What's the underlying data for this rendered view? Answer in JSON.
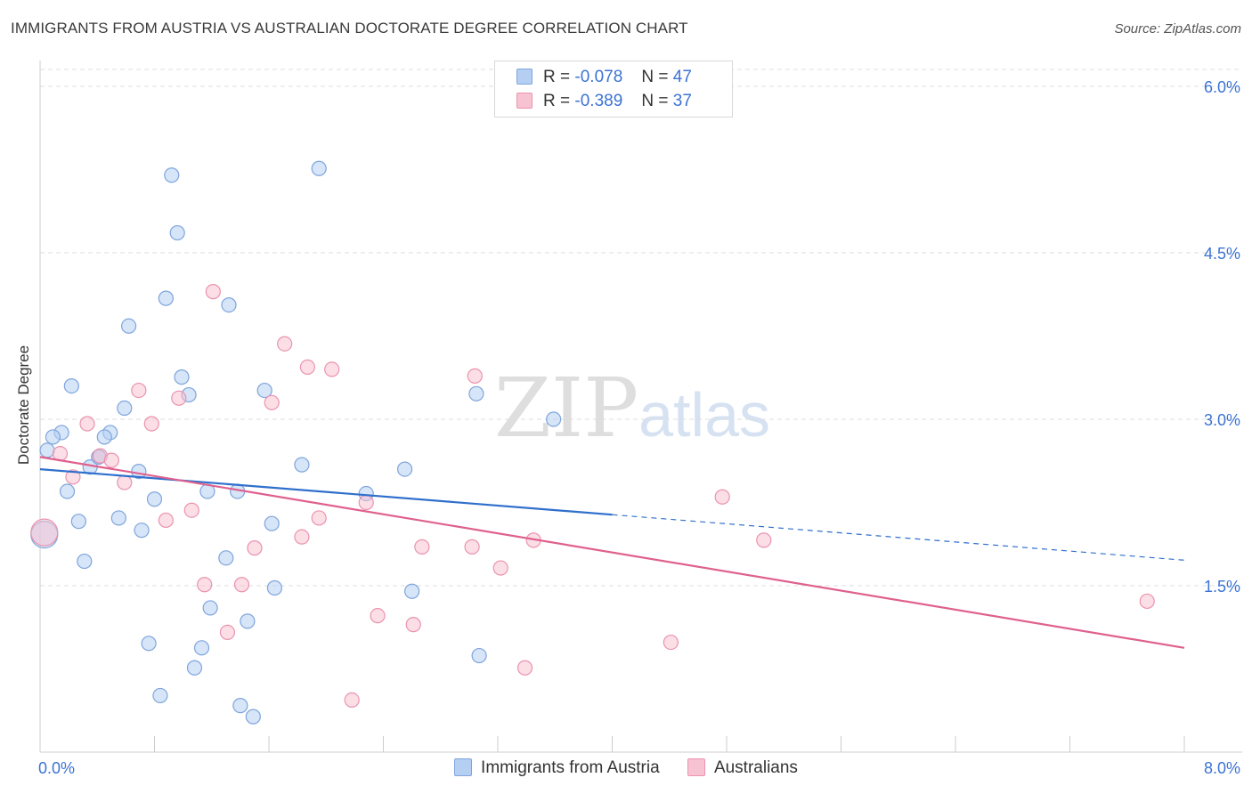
{
  "title": "IMMIGRANTS FROM AUSTRIA VS AUSTRALIAN DOCTORATE DEGREE CORRELATION CHART",
  "source": "Source: ZipAtlas.com",
  "watermark": {
    "part1": "ZIP",
    "part2": "atlas"
  },
  "colors": {
    "blue_fill": "#b5cff2",
    "blue_stroke": "#7fa5dc",
    "blue_line": "#2f6fcc",
    "pink_fill": "#f7c3d2",
    "pink_stroke": "#eb93ae",
    "pink_line": "#e0608e",
    "axis_label": "#3b73d4",
    "grid": "#dddddd"
  },
  "legend_top": {
    "row1": {
      "r_label": "R =",
      "r_value": "-0.078",
      "n_label": "N =",
      "n_value": "47"
    },
    "row2": {
      "r_label": "R =",
      "r_value": "-0.389",
      "n_label": "N =",
      "n_value": "37"
    }
  },
  "legend_bottom": {
    "series1": "Immigrants from Austria",
    "series2": "Australians"
  },
  "chart_data": {
    "type": "scatter",
    "title": "IMMIGRANTS FROM AUSTRIA VS AUSTRALIAN DOCTORATE DEGREE CORRELATION CHART",
    "xlabel": "",
    "ylabel": "Doctorate Degree",
    "xlim": [
      0,
      8
    ],
    "ylim": [
      0,
      6.15
    ],
    "x_tick_labels": [
      "0.0%",
      "8.0%"
    ],
    "y_ticks": [
      1.5,
      3.0,
      4.5,
      6.0
    ],
    "y_tick_labels": [
      "1.5%",
      "3.0%",
      "4.5%",
      "6.0%"
    ],
    "grid": true,
    "legend_placement": "bottom",
    "series": [
      {
        "name": "Immigrants from Austria",
        "color": "#b5cff2",
        "points": [
          [
            0.92,
            5.2
          ],
          [
            1.95,
            5.26
          ],
          [
            0.96,
            4.68
          ],
          [
            0.88,
            4.09
          ],
          [
            1.32,
            4.03
          ],
          [
            0.62,
            3.84
          ],
          [
            0.99,
            3.38
          ],
          [
            0.22,
            3.3
          ],
          [
            1.04,
            3.22
          ],
          [
            1.57,
            3.26
          ],
          [
            0.59,
            3.1
          ],
          [
            3.05,
            3.23
          ],
          [
            3.59,
            3.0
          ],
          [
            0.15,
            2.88
          ],
          [
            0.49,
            2.88
          ],
          [
            0.09,
            2.84
          ],
          [
            0.45,
            2.84
          ],
          [
            0.41,
            2.66
          ],
          [
            0.35,
            2.57
          ],
          [
            0.69,
            2.53
          ],
          [
            1.83,
            2.59
          ],
          [
            2.55,
            2.55
          ],
          [
            0.19,
            2.35
          ],
          [
            1.17,
            2.35
          ],
          [
            1.38,
            2.35
          ],
          [
            2.28,
            2.33
          ],
          [
            0.8,
            2.28
          ],
          [
            0.55,
            2.11
          ],
          [
            0.27,
            2.08
          ],
          [
            1.62,
            2.06
          ],
          [
            0.71,
            2.0
          ],
          [
            0.03,
            1.96
          ],
          [
            0.31,
            1.72
          ],
          [
            1.3,
            1.75
          ],
          [
            1.64,
            1.48
          ],
          [
            2.6,
            1.45
          ],
          [
            1.19,
            1.3
          ],
          [
            1.45,
            1.18
          ],
          [
            0.76,
            0.98
          ],
          [
            1.13,
            0.94
          ],
          [
            3.07,
            0.87
          ],
          [
            1.08,
            0.76
          ],
          [
            0.84,
            0.51
          ],
          [
            1.4,
            0.42
          ],
          [
            1.49,
            0.32
          ],
          [
            0.05,
            2.72
          ],
          [
            0.41,
            2.66
          ]
        ],
        "trend": {
          "x": [
            0.0,
            8.0
          ],
          "y": [
            2.55,
            1.73
          ],
          "solid_until_x": 4.0
        }
      },
      {
        "name": "Australians",
        "color": "#f7c3d2",
        "points": [
          [
            1.21,
            4.15
          ],
          [
            1.71,
            3.68
          ],
          [
            1.87,
            3.47
          ],
          [
            2.04,
            3.45
          ],
          [
            3.04,
            3.39
          ],
          [
            0.69,
            3.26
          ],
          [
            0.97,
            3.19
          ],
          [
            1.62,
            3.15
          ],
          [
            0.33,
            2.96
          ],
          [
            0.78,
            2.96
          ],
          [
            0.14,
            2.69
          ],
          [
            0.42,
            2.67
          ],
          [
            0.5,
            2.63
          ],
          [
            0.23,
            2.48
          ],
          [
            0.59,
            2.43
          ],
          [
            4.77,
            2.3
          ],
          [
            2.28,
            2.25
          ],
          [
            1.06,
            2.18
          ],
          [
            1.95,
            2.11
          ],
          [
            0.88,
            2.09
          ],
          [
            1.83,
            1.94
          ],
          [
            3.45,
            1.91
          ],
          [
            5.06,
            1.91
          ],
          [
            2.67,
            1.85
          ],
          [
            3.02,
            1.85
          ],
          [
            1.5,
            1.84
          ],
          [
            3.22,
            1.66
          ],
          [
            1.15,
            1.51
          ],
          [
            1.41,
            1.51
          ],
          [
            7.74,
            1.36
          ],
          [
            2.36,
            1.23
          ],
          [
            2.61,
            1.15
          ],
          [
            1.31,
            1.08
          ],
          [
            4.41,
            0.99
          ],
          [
            3.39,
            0.76
          ],
          [
            2.18,
            0.47
          ],
          [
            0.03,
            1.98
          ]
        ],
        "trend": {
          "x": [
            0.0,
            8.0
          ],
          "y": [
            2.66,
            0.94
          ]
        }
      }
    ]
  }
}
